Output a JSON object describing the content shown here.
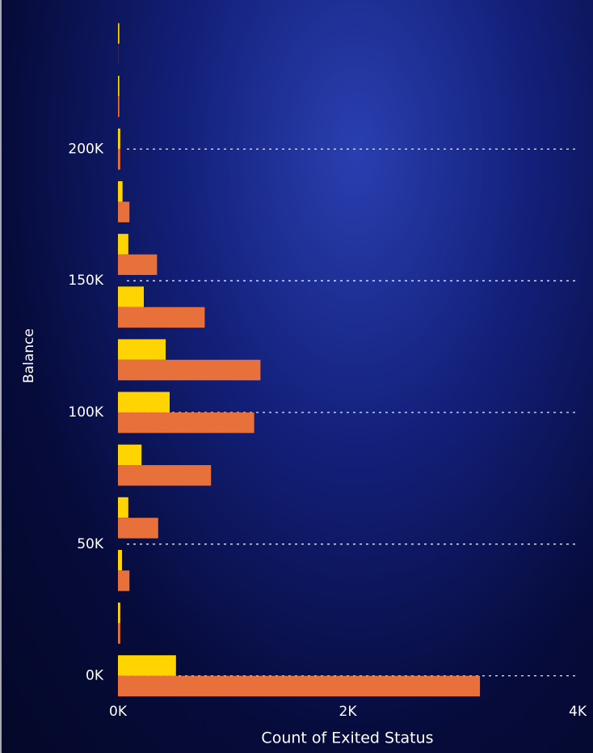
{
  "chart_data": {
    "type": "hbar",
    "ylabel": "Balance",
    "xlabel": "Count of Exited Status",
    "y": [
      0,
      20000,
      40000,
      60000,
      80000,
      100000,
      120000,
      140000,
      160000,
      180000,
      200000,
      220000,
      240000
    ],
    "series": [
      {
        "color": "#ffd400",
        "values": [
          505,
          20,
          35,
          90,
          205,
          450,
          415,
          225,
          90,
          40,
          20,
          12,
          12
        ]
      },
      {
        "color": "#e8703a",
        "values": [
          3150,
          20,
          100,
          350,
          810,
          1185,
          1240,
          755,
          340,
          100,
          20,
          12,
          1
        ]
      }
    ],
    "xlim": [
      0,
      4000
    ],
    "xticks": [
      {
        "value": 0,
        "label": "0K"
      },
      {
        "value": 2000,
        "label": "2K"
      },
      {
        "value": 4000,
        "label": "4K"
      }
    ],
    "ylim": [
      -7500,
      252000
    ],
    "yticks": [
      {
        "value": 0,
        "label": "0K"
      },
      {
        "value": 50000,
        "label": "50K"
      },
      {
        "value": 100000,
        "label": "100K"
      },
      {
        "value": 150000,
        "label": "150K"
      },
      {
        "value": 200000,
        "label": "200K"
      }
    ],
    "grid": true
  }
}
